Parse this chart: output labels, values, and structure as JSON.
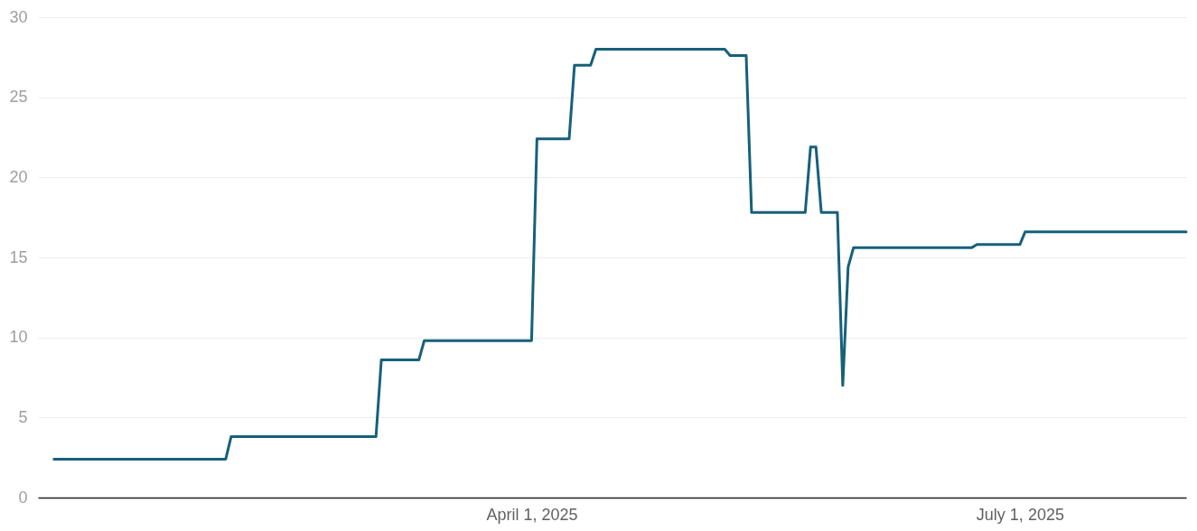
{
  "chart_data": {
    "type": "line",
    "x": [
      "2025-01-02",
      "2025-02-03",
      "2025-02-04",
      "2025-03-03",
      "2025-03-04",
      "2025-03-11",
      "2025-03-12",
      "2025-04-01",
      "2025-04-02",
      "2025-04-08",
      "2025-04-09",
      "2025-04-12",
      "2025-04-13",
      "2025-05-07",
      "2025-05-08",
      "2025-05-11",
      "2025-05-12",
      "2025-05-22",
      "2025-05-23",
      "2025-05-24",
      "2025-05-25",
      "2025-05-28",
      "2025-05-29",
      "2025-05-30",
      "2025-05-31",
      "2025-06-22",
      "2025-06-23",
      "2025-07-01",
      "2025-07-02",
      "2025-08-01"
    ],
    "series": [
      {
        "color": "#17607a",
        "values": [
          2.4,
          2.4,
          3.8,
          3.8,
          8.6,
          8.6,
          9.8,
          9.8,
          22.4,
          22.4,
          27,
          27,
          28,
          28,
          27.6,
          27.6,
          17.8,
          17.8,
          21.9,
          21.9,
          17.8,
          17.8,
          7,
          14.4,
          15.6,
          15.6,
          15.8,
          15.8,
          16.6,
          16.6
        ]
      }
    ],
    "xlim": [
      "2024-12-30",
      "2025-08-01"
    ],
    "xticks": [
      {
        "value": "2025-04-01",
        "label": "April 1, 2025"
      },
      {
        "value": "2025-07-01",
        "label": "July 1, 2025"
      }
    ],
    "ylim": [
      0,
      30
    ],
    "yticks": [
      0,
      5,
      10,
      15,
      20,
      25,
      30
    ],
    "grid": "y",
    "marker": "none",
    "line_style": "solid"
  }
}
